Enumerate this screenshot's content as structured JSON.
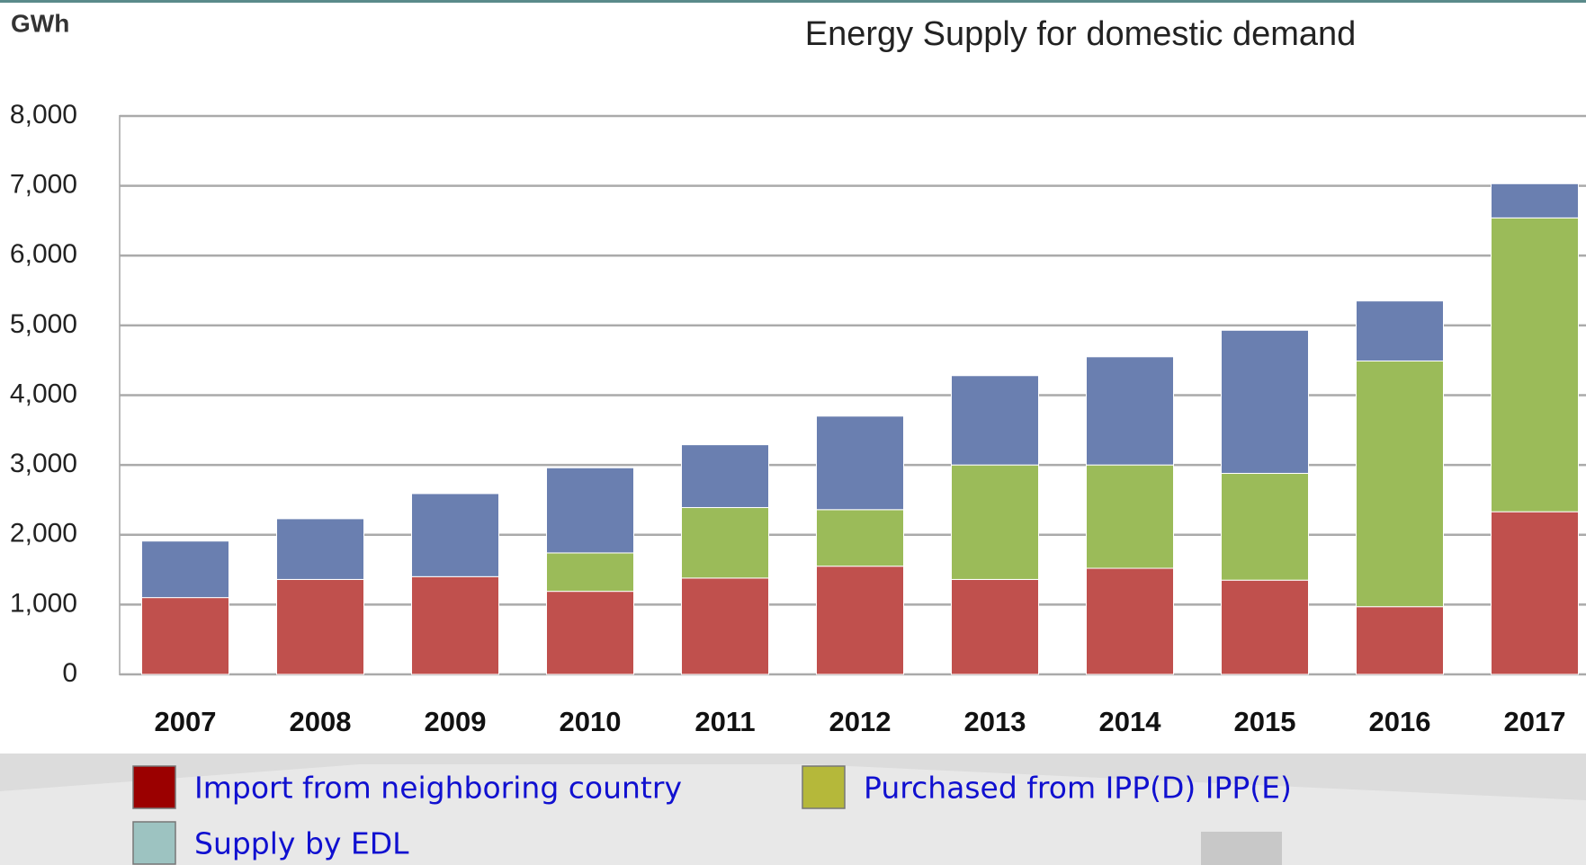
{
  "chart_data": {
    "type": "stacked_bar",
    "title": "Energy Supply for domestic demand",
    "y_axis_label": "GWh",
    "categories": [
      "2007",
      "2008",
      "2009",
      "2010",
      "2011",
      "2012",
      "2013",
      "2014",
      "2015",
      "2016",
      "2017"
    ],
    "series": [
      {
        "name": "Import from neighboring country",
        "color": "#c0504d",
        "legend_color": "#9b0000",
        "values": [
          1100,
          1360,
          1400,
          1190,
          1380,
          1550,
          1360,
          1520,
          1350,
          970,
          2330
        ]
      },
      {
        "name": "Purchased from IPP(D) IPP(E)",
        "color": "#9bbb59",
        "legend_color": "#b5b83a",
        "values": [
          0,
          0,
          0,
          550,
          1010,
          810,
          1640,
          1480,
          1530,
          3520,
          4210
        ]
      },
      {
        "name": "Supply by EDL",
        "color": "#6a7fb0",
        "legend_color": "#9dc3c1",
        "values": [
          810,
          870,
          1190,
          1220,
          900,
          1340,
          1280,
          1550,
          2050,
          860,
          490
        ]
      }
    ],
    "ylim": [
      0,
      8000
    ],
    "yticks": [
      0,
      {
        "value": 1000,
        "label": "1,000"
      },
      {
        "value": 2000,
        "label": "2,000"
      },
      {
        "value": 3000,
        "label": "3,000"
      },
      {
        "value": 4000,
        "label": "4,000"
      },
      {
        "value": 5000,
        "label": "5,000"
      },
      {
        "value": 6000,
        "label": "6,000"
      },
      {
        "value": 7000,
        "label": "7,000"
      },
      {
        "value": 8000,
        "label": "8,000"
      }
    ],
    "grid": true
  }
}
